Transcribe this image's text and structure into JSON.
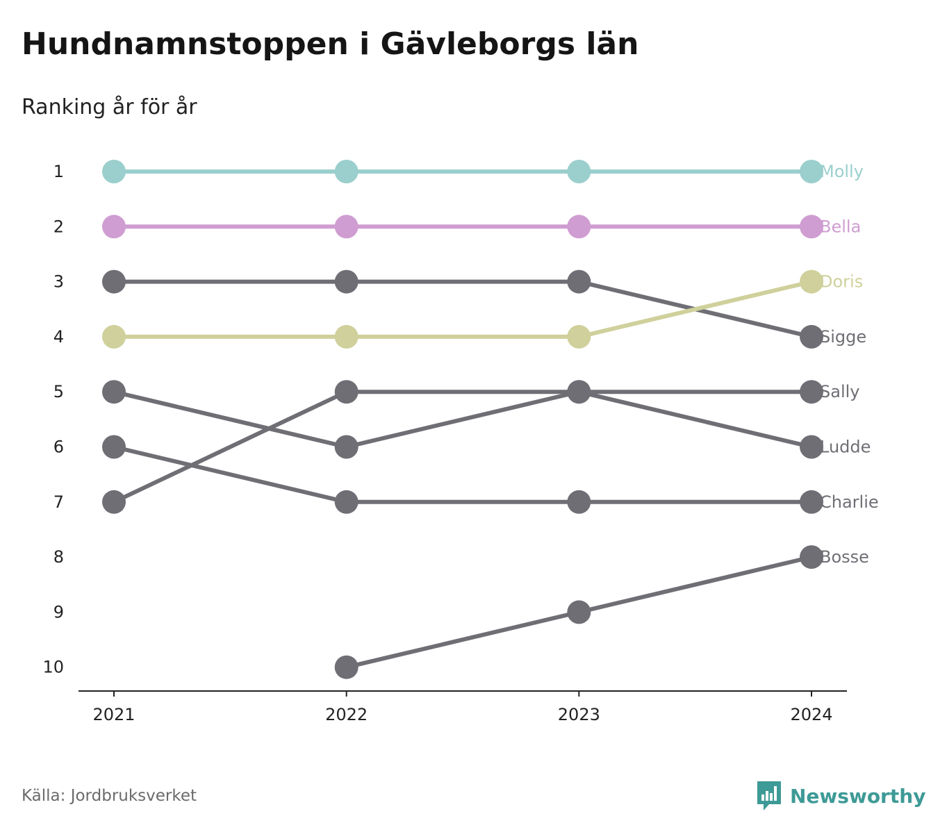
{
  "header": {
    "title": "Hundnamnstoppen i Gävleborgs län",
    "subtitle": "Ranking år för år"
  },
  "footer": {
    "source": "Källa: Jordbruksverket",
    "brand_name": "Newsworthy",
    "brand_icon": "bar-chart-speech-bubble-icon",
    "brand_color": "#3e9a96"
  },
  "chart_data": {
    "type": "line",
    "chart_kind": "bump",
    "x": [
      "2021",
      "2022",
      "2023",
      "2024"
    ],
    "y_ticks": [
      "1",
      "2",
      "3",
      "4",
      "5",
      "6",
      "7",
      "8",
      "9",
      "10"
    ],
    "ylim": [
      1,
      10
    ],
    "y_inverted": true,
    "grid": false,
    "legend": "direct labels at right end of lines",
    "series": [
      {
        "name": "Molly",
        "values": [
          1,
          1,
          1,
          1
        ],
        "color": "#9bcfcd"
      },
      {
        "name": "Bella",
        "values": [
          2,
          2,
          2,
          2
        ],
        "color": "#cf9dd1"
      },
      {
        "name": "Doris",
        "values": [
          4,
          4,
          4,
          3
        ],
        "color": "#cfd09b"
      },
      {
        "name": "Sigge",
        "values": [
          3,
          3,
          3,
          4
        ],
        "color": "#6f6e75"
      },
      {
        "name": "Sally",
        "values": [
          7,
          5,
          5,
          5
        ],
        "color": "#6f6e75"
      },
      {
        "name": "Ludde",
        "values": [
          5,
          6,
          5,
          6
        ],
        "color": "#6f6e75"
      },
      {
        "name": "Charlie",
        "values": [
          6,
          7,
          7,
          7
        ],
        "color": "#6f6e75"
      },
      {
        "name": "Bosse",
        "values": [
          null,
          10,
          9,
          8
        ],
        "color": "#6f6e75"
      }
    ]
  }
}
